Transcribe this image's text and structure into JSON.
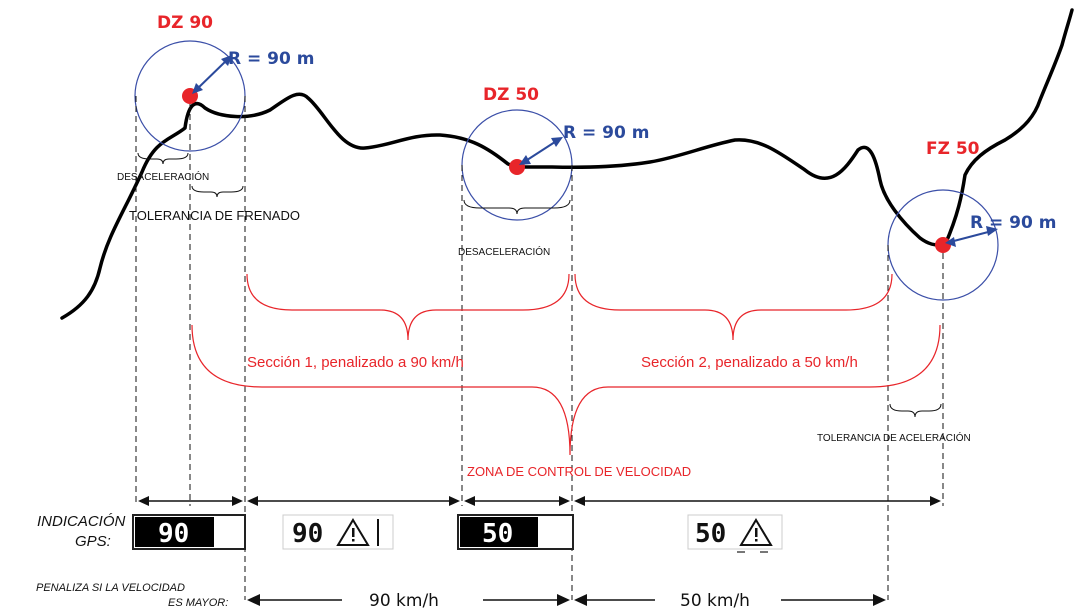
{
  "zones": {
    "dz90": {
      "label": "DZ 90",
      "radius": "R = 90 m"
    },
    "dz50": {
      "label": "DZ 50",
      "radius": "R = 90 m"
    },
    "fz50": {
      "label": "FZ 50",
      "radius": "R = 90 m"
    }
  },
  "annotations": {
    "deceleration_1": "DESACELERACIÓN",
    "braking_tolerance": "TOLERANCIA DE FRENADO",
    "deceleration_2": "DESACELERACIÓN",
    "acceleration_tolerance": "TOLERANCIA DE ACELERACIÓN",
    "section_1": "Sección 1, penalizado a 90 km/h",
    "section_2": "Sección 2, penalizado a 50 km/h",
    "control_zone": "ZONA DE CONTROL DE VELOCIDAD"
  },
  "gps": {
    "label_line1": "INDICACIÓN",
    "label_line2": "GPS:",
    "displays": [
      {
        "value": "90",
        "style": "inverted"
      },
      {
        "value": "90",
        "style": "warning"
      },
      {
        "value": "50",
        "style": "inverted"
      },
      {
        "value": "50",
        "style": "warning"
      }
    ]
  },
  "penalty": {
    "label_line1": "PENALIZA SI LA VELOCIDAD",
    "label_line2": "ES MAYOR:",
    "speed_1": "90 km/h",
    "speed_2": "50 km/h"
  },
  "colors": {
    "zone_label": "#e8252a",
    "radius_label": "#2b4a9c",
    "section_text": "#e8252a",
    "circle": "#3b4fa8",
    "marker": "#e8252a",
    "road": "#000000"
  },
  "icons": {
    "gps_warning": "warning-triangle-icon"
  }
}
